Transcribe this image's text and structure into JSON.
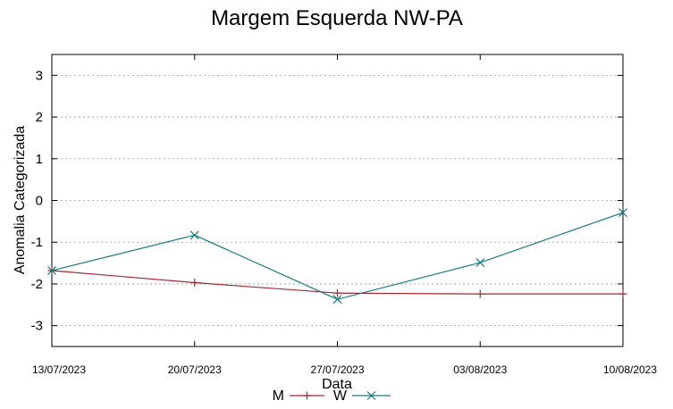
{
  "chart_data": {
    "type": "line",
    "title": "Margem Esquerda NW-PA",
    "xlabel": "Data",
    "ylabel": "Anomalia Categorizada",
    "categories": [
      "13/07/2023",
      "20/07/2023",
      "27/07/2023",
      "03/08/2023",
      "10/08/2023"
    ],
    "yticks": [
      3,
      2,
      1,
      0,
      -1,
      -2,
      -3
    ],
    "ytick_labels": [
      "3",
      "2",
      "1",
      "0",
      "-1",
      "-2",
      "-3"
    ],
    "ylim": [
      -3.5,
      3.5
    ],
    "grid": true,
    "legend_position": "bottom-center",
    "series": [
      {
        "name": "M",
        "color": "#a0282d",
        "marker": "plus",
        "values": [
          -1.68,
          -1.97,
          -2.22,
          -2.24,
          -2.24
        ]
      },
      {
        "name": "W",
        "color": "#1a7a7e",
        "marker": "x",
        "values": [
          -1.68,
          -0.83,
          -2.37,
          -1.49,
          -0.29
        ]
      }
    ]
  }
}
